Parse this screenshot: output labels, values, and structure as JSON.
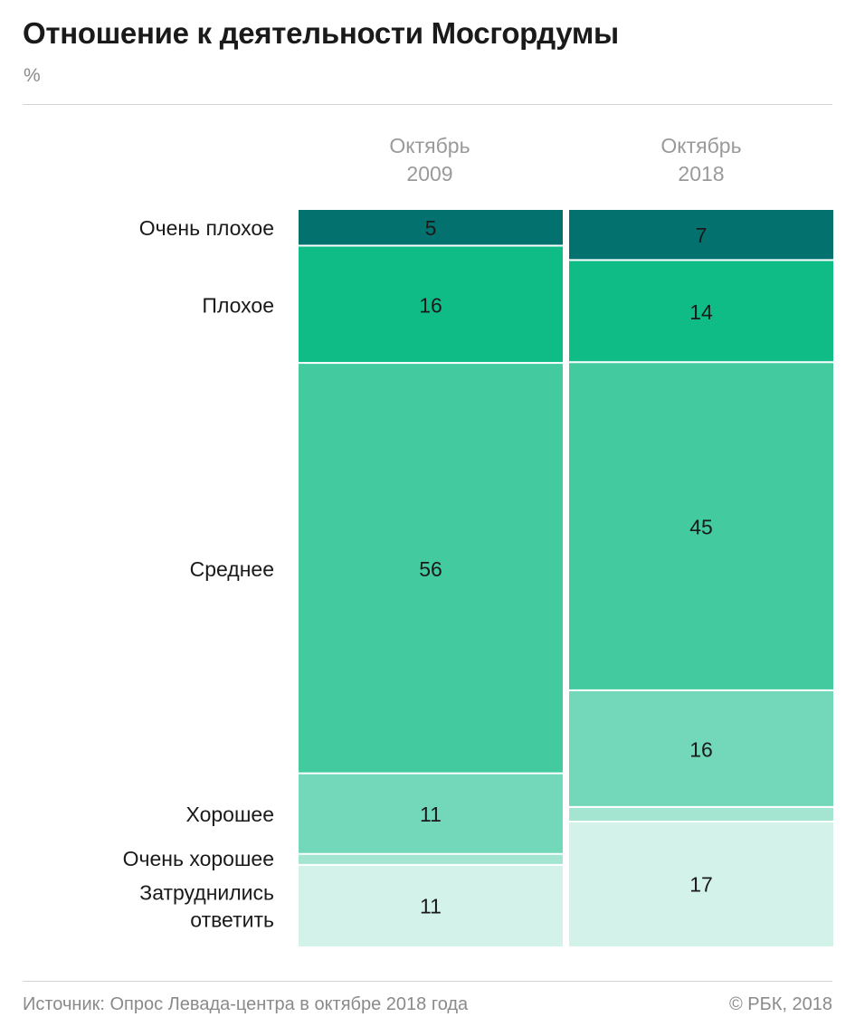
{
  "title": "Отношение к деятельности Мосгордумы",
  "unit": "%",
  "columns": [
    {
      "line1": "Октябрь",
      "line2": "2009"
    },
    {
      "line1": "Октябрь",
      "line2": "2018"
    }
  ],
  "footer": {
    "source": "Источник: Опрос Левада-центра в октябре 2018 года",
    "copyright": "© РБК, 2018"
  },
  "chart_data": {
    "type": "bar",
    "stacked": true,
    "orientation": "vertical",
    "normalized_to": 100,
    "categories": [
      "Октябрь 2009",
      "Октябрь 2018"
    ],
    "series": [
      {
        "name": "Очень плохое",
        "label_lines": [
          "Очень плохое"
        ],
        "color": "#03726f",
        "values": [
          5,
          7
        ],
        "labels": [
          "5",
          "7"
        ]
      },
      {
        "name": "Плохое",
        "label_lines": [
          "Плохое"
        ],
        "color": "#10bc86",
        "values": [
          16,
          14
        ],
        "labels": [
          "16",
          "14"
        ]
      },
      {
        "name": "Среднее",
        "label_lines": [
          "Среднее"
        ],
        "color": "#43cb9f",
        "values": [
          56,
          45
        ],
        "labels": [
          "56",
          "45"
        ]
      },
      {
        "name": "Хорошее",
        "label_lines": [
          "Хорошее"
        ],
        "color": "#73d8b9",
        "values": [
          11,
          16
        ],
        "labels": [
          "11",
          "16"
        ]
      },
      {
        "name": "Очень хорошее",
        "label_lines": [
          "Очень хорошее"
        ],
        "color": "#a4e5d2",
        "values": [
          1.5,
          2
        ],
        "labels": [
          "",
          ""
        ]
      },
      {
        "name": "Затруднились ответить",
        "label_lines": [
          "Затруднились",
          "ответить"
        ],
        "color": "#d3f2ea",
        "values": [
          11,
          17
        ],
        "labels": [
          "11",
          "17"
        ]
      }
    ]
  }
}
